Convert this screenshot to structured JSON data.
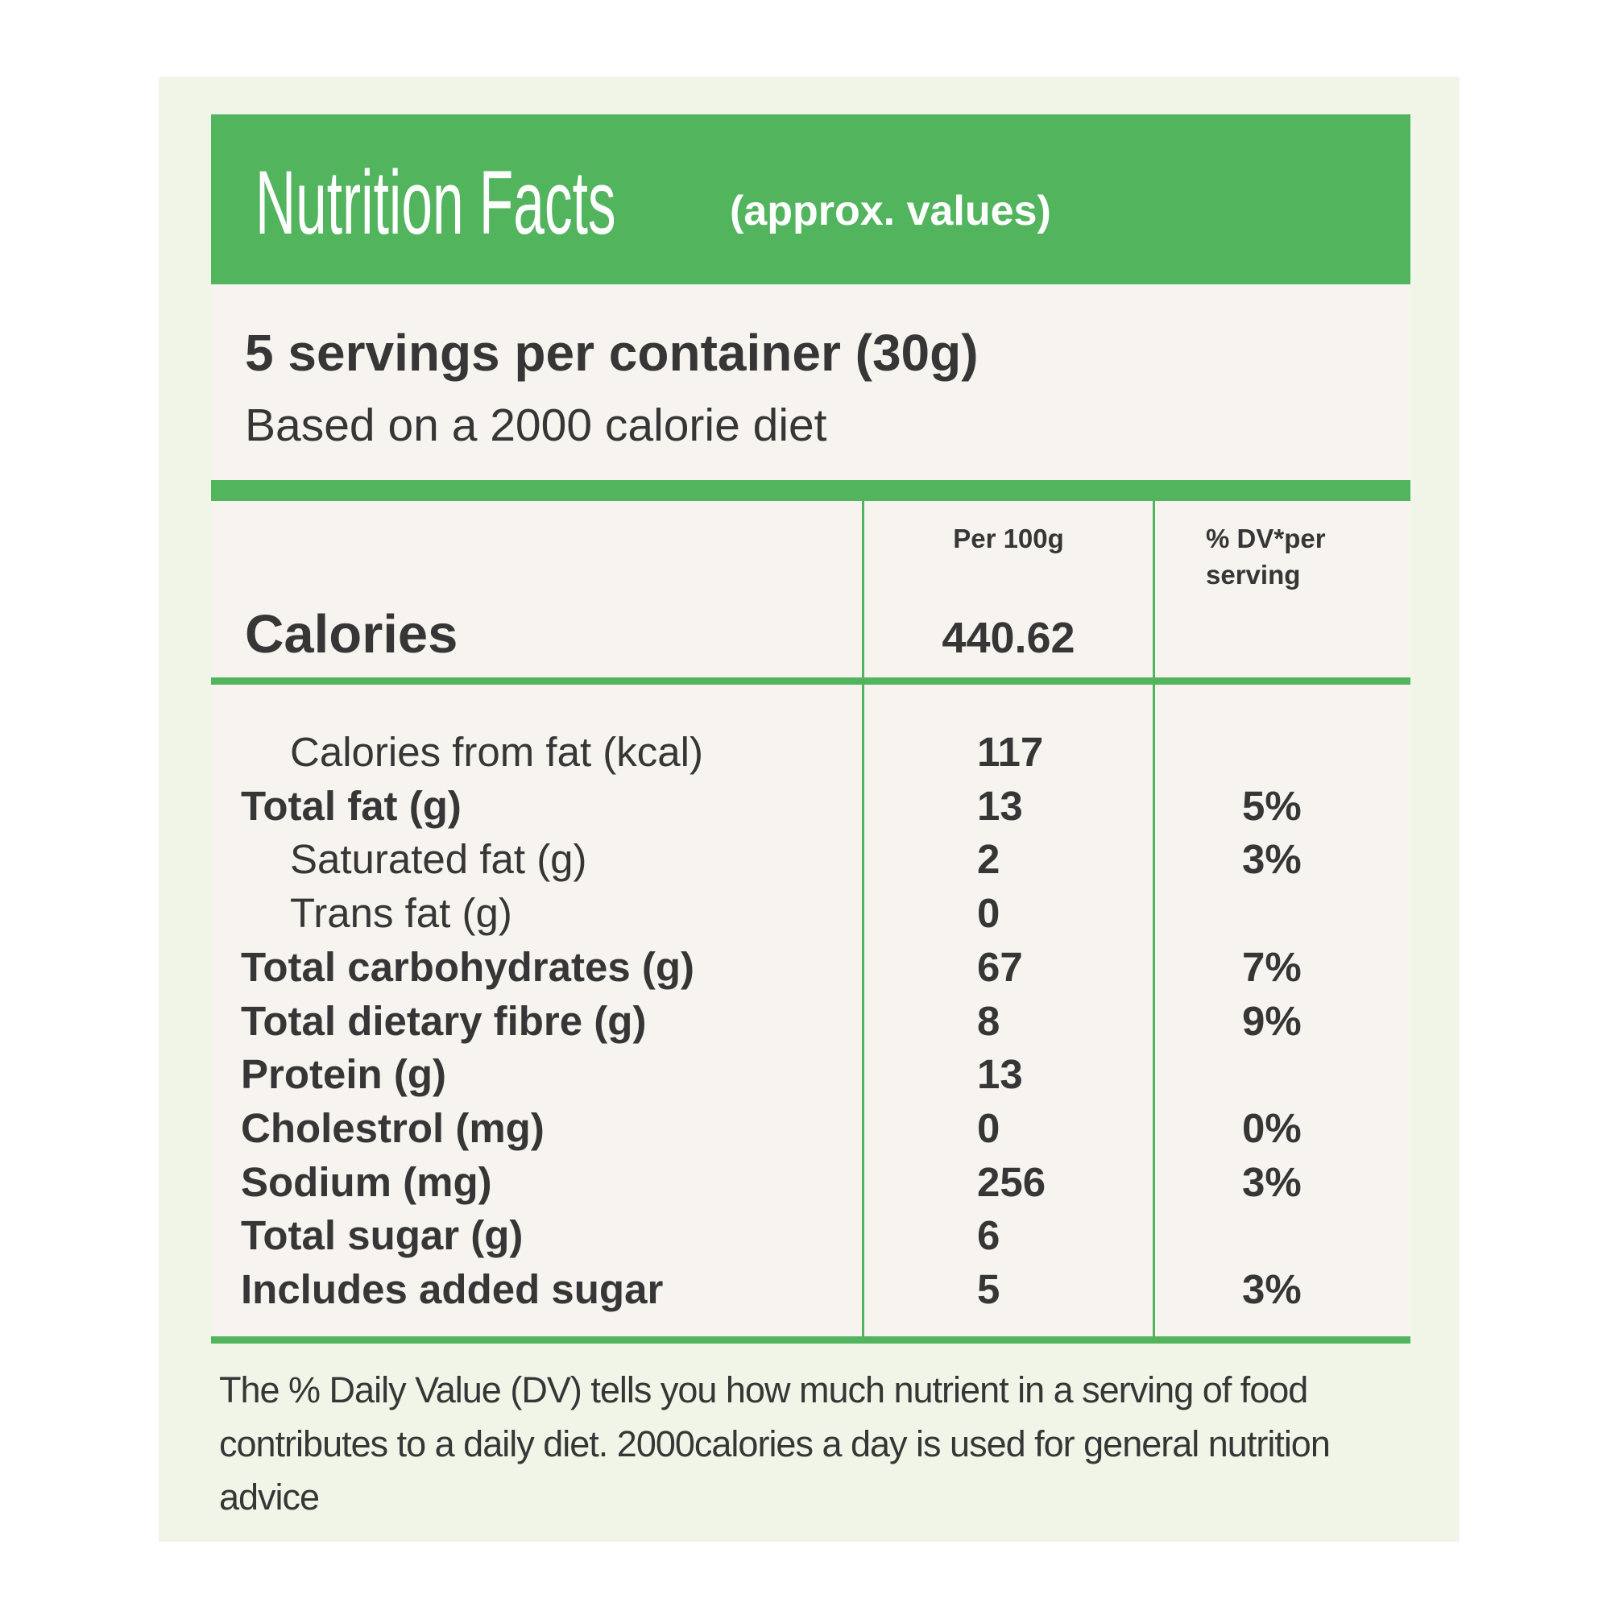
{
  "header": {
    "title": "Nutrition Facts",
    "subtitle": "(approx. values)"
  },
  "servings": "5 servings per container (30g)",
  "basis": "Based on a 2000 calorie diet",
  "table": {
    "columns": [
      "Per 100g",
      "% DV*per serving"
    ],
    "calories": {
      "label": "Calories",
      "per_100g": "440.62"
    },
    "rows": [
      {
        "label": "Calories from fat (kcal)",
        "per_100g": "117",
        "sub": true
      },
      {
        "label": "Total fat (g)",
        "per_100g": "13",
        "dv": "5%"
      },
      {
        "label": "Saturated fat (g)",
        "per_100g": "2",
        "dv": "3%",
        "sub": true
      },
      {
        "label": "Trans fat (g)",
        "per_100g": "0",
        "sub": true
      },
      {
        "label": "Total carbohydrates (g)",
        "per_100g": "67",
        "dv": "7%"
      },
      {
        "label": "Total dietary fibre (g)",
        "per_100g": "8",
        "dv": "9%"
      },
      {
        "label": "Protein (g)",
        "per_100g": "13"
      },
      {
        "label": "Cholestrol (mg)",
        "per_100g": "0",
        "dv": "0%"
      },
      {
        "label": "Sodium (mg)",
        "per_100g": "256",
        "dv": "3%"
      },
      {
        "label": "Total sugar (g)",
        "per_100g": "6"
      },
      {
        "label": "Includes added sugar",
        "per_100g": "5",
        "dv": "3%"
      }
    ]
  },
  "footnote": "The % Daily Value (DV) tells you how much nutrient in a serving of food contributes to a daily diet. 2000calories a day is used for general nutrition advice"
}
